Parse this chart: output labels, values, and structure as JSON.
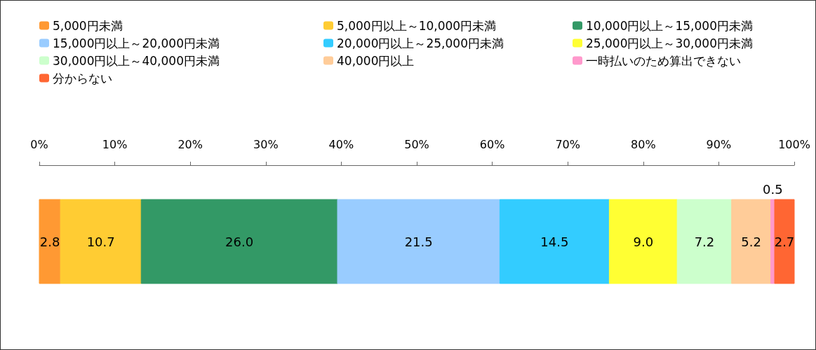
{
  "chart_data": {
    "type": "bar",
    "orientation": "horizontal",
    "stacked": true,
    "categories": [
      null
    ],
    "series": [
      {
        "name": "5,000円未満",
        "color": "#ff9933",
        "values": [
          2.8
        ],
        "value_labels": [
          "2.8"
        ]
      },
      {
        "name": "5,000円以上～10,000円未満",
        "color": "#ffcc33",
        "values": [
          10.7
        ],
        "value_labels": [
          "10.7"
        ]
      },
      {
        "name": "10,000円以上～15,000円未満",
        "color": "#339966",
        "values": [
          26.0
        ],
        "value_labels": [
          "26.0"
        ]
      },
      {
        "name": "15,000円以上～20,000円未満",
        "color": "#99ccff",
        "values": [
          21.5
        ],
        "value_labels": [
          "21.5"
        ]
      },
      {
        "name": "20,000円以上～25,000円未満",
        "color": "#33ccff",
        "values": [
          14.5
        ],
        "value_labels": [
          "14.5"
        ]
      },
      {
        "name": "25,000円以上～30,000円未満",
        "color": "#ffff33",
        "values": [
          9.0
        ],
        "value_labels": [
          "9.0"
        ]
      },
      {
        "name": "30,000円以上～40,000円未満",
        "color": "#ccffcc",
        "values": [
          7.2
        ],
        "value_labels": [
          "7.2"
        ]
      },
      {
        "name": "40,000円以上",
        "color": "#ffcc99",
        "values": [
          5.2
        ],
        "value_labels": [
          "5.2"
        ]
      },
      {
        "name": "一時払いのため算出できない",
        "color": "#ff99cc",
        "values": [
          0.5
        ],
        "value_labels": [
          "0.5"
        ]
      },
      {
        "name": "分からない",
        "color": "#ff6633",
        "values": [
          2.7
        ],
        "value_labels": [
          "2.7"
        ]
      }
    ],
    "xlim": [
      0,
      100
    ],
    "xticks": [
      {
        "value": 0,
        "label": "0%"
      },
      {
        "value": 10,
        "label": "10%"
      },
      {
        "value": 20,
        "label": "20%"
      },
      {
        "value": 30,
        "label": "30%"
      },
      {
        "value": 40,
        "label": "40%"
      },
      {
        "value": 50,
        "label": "50%"
      },
      {
        "value": 60,
        "label": "60%"
      },
      {
        "value": 70,
        "label": "70%"
      },
      {
        "value": 80,
        "label": "80%"
      },
      {
        "value": 90,
        "label": "90%"
      },
      {
        "value": 100,
        "label": "100%"
      }
    ],
    "grid": false,
    "legend": "top left"
  }
}
